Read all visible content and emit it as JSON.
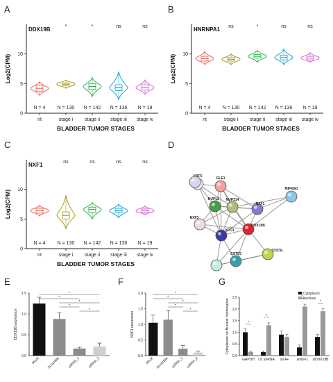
{
  "panel_letters": [
    "A",
    "B",
    "C",
    "D",
    "E",
    "F",
    "G"
  ],
  "colors": {
    "nt": "#f06b5e",
    "stage_i": "#a79b1d",
    "stage_ii": "#2bb24c",
    "stage_iii": "#1aa6d8",
    "stage_iv": "#d468d8",
    "bar_black": "#111111",
    "bar_gray": "#999999",
    "bar_light": "#cfcfcf"
  },
  "chart_data": [
    {
      "type": "violin",
      "panel": "A",
      "title": "DDX19B",
      "ylabel": "Log2(CPM)",
      "xlabel": "BLADDER TUMOR STAGES",
      "ylim": [
        0,
        15
      ],
      "yticks": [
        "0",
        "5",
        "10"
      ],
      "categories": [
        "nt",
        "stage i",
        "stage ii",
        "stage iii",
        "stage iv"
      ],
      "counts": [
        "N = 4",
        "N = 130",
        "N = 142",
        "N = 136",
        "N = 19"
      ],
      "significance": [
        "",
        "*",
        "*",
        "ns",
        "ns"
      ],
      "medians": [
        4.2,
        4.9,
        4.5,
        4.3,
        4.3
      ],
      "q1": [
        3.7,
        4.7,
        4.0,
        3.8,
        3.9
      ],
      "q3": [
        4.7,
        5.1,
        5.0,
        4.8,
        4.8
      ],
      "min": [
        3.0,
        4.2,
        2.8,
        2.3,
        3.2
      ],
      "max": [
        5.3,
        5.6,
        6.0,
        7.0,
        5.6
      ]
    },
    {
      "type": "violin",
      "panel": "B",
      "title": "HNRNPA1",
      "ylabel": "Log2(CPM)",
      "xlabel": "BLADDER TUMOR STAGES",
      "ylim": [
        0,
        15
      ],
      "yticks": [
        "0",
        "5",
        "10"
      ],
      "categories": [
        "nt",
        "stage i",
        "stage ii",
        "stage iii",
        "stage iv"
      ],
      "counts": [
        "N = 4",
        "N = 130",
        "N = 142",
        "N = 136",
        "N = 19"
      ],
      "significance": [
        "",
        "ns",
        "*",
        "ns",
        "ns"
      ],
      "medians": [
        9.2,
        9.1,
        9.6,
        9.4,
        9.3
      ],
      "q1": [
        8.8,
        8.8,
        9.3,
        9.0,
        9.0
      ],
      "q3": [
        9.6,
        9.4,
        9.9,
        9.8,
        9.6
      ],
      "min": [
        8.2,
        8.2,
        8.6,
        8.2,
        8.6
      ],
      "max": [
        10.4,
        10.0,
        10.6,
        10.8,
        10.2
      ]
    },
    {
      "type": "violin",
      "panel": "C",
      "title": "NXF1",
      "ylabel": "Log2(CPM)",
      "xlabel": "BLADDER TUMOR STAGES",
      "ylim": [
        0,
        15
      ],
      "yticks": [
        "0",
        "5",
        "10"
      ],
      "categories": [
        "nt",
        "stage i",
        "stage ii",
        "stage iii",
        "stage iv"
      ],
      "counts": [
        "N = 4",
        "N = 130",
        "N = 142",
        "N = 136",
        "N = 19"
      ],
      "significance": [
        "",
        "ns",
        "ns",
        "ns",
        "ns"
      ],
      "medians": [
        6.4,
        5.6,
        6.6,
        6.4,
        6.4
      ],
      "q1": [
        6.0,
        5.0,
        6.1,
        6.1,
        6.1
      ],
      "q3": [
        6.8,
        6.2,
        7.0,
        6.8,
        6.7
      ],
      "min": [
        5.5,
        3.3,
        5.0,
        5.2,
        5.7
      ],
      "max": [
        7.3,
        9.0,
        7.8,
        7.5,
        7.2
      ]
    },
    {
      "type": "bar",
      "panel": "E",
      "ylabel": "DDX19B expression",
      "ylim": [
        0,
        1.5
      ],
      "yticks": [
        "0.0",
        "0.5",
        "1.0",
        "1.5"
      ],
      "categories": [
        "Mock",
        "Scramble",
        "siRNA_1",
        "siRNA_2"
      ],
      "values": [
        1.25,
        0.88,
        0.17,
        0.22
      ],
      "errors": [
        0.15,
        0.15,
        0.03,
        0.08
      ],
      "bar_colors": [
        "#111111",
        "#8c8c8c",
        "#8c8c8c",
        "#cfcfcf"
      ],
      "significance_label": "*"
    },
    {
      "type": "bar",
      "panel": "F",
      "ylabel": "NXF1 expression",
      "ylim": [
        0,
        2.0
      ],
      "yticks": [
        "0.0",
        "0.5",
        "1.0",
        "1.5",
        "2.0"
      ],
      "categories": [
        "Mock",
        "Scramble",
        "siRNA_1",
        "siRNA_2"
      ],
      "values": [
        1.05,
        1.15,
        0.22,
        0.1
      ],
      "errors": [
        0.25,
        0.3,
        0.1,
        0.05
      ],
      "bar_colors": [
        "#111111",
        "#8c8c8c",
        "#8c8c8c",
        "#cfcfcf"
      ],
      "significance_label": "*"
    },
    {
      "type": "bar",
      "panel": "G",
      "ylabel": "Cytoplasmic vs Nuclear fractionation",
      "ylim": [
        0,
        2.5
      ],
      "yticks": [
        "0.0",
        "0.5",
        "1.0",
        "1.5",
        "2.0",
        "2.5"
      ],
      "categories": [
        "GAPDH",
        "U1 snRNA",
        "oli.A+",
        "siNXF1",
        "siDDX19B"
      ],
      "series": [
        {
          "name": "Cytoplasm",
          "values": [
            1.0,
            0.15,
            0.9,
            0.35,
            0.8
          ]
        },
        {
          "name": "Nucleus",
          "values": [
            0.15,
            1.3,
            0.8,
            2.1,
            1.9
          ]
        }
      ],
      "errors": [
        [
          0.15,
          0.05,
          0.15,
          0.1,
          0.1
        ],
        [
          0.05,
          0.1,
          0.1,
          0.1,
          0.1
        ]
      ],
      "significance_label": "*"
    }
  ],
  "network": {
    "nodes": [
      {
        "id": "NXF5",
        "color": "#e7e7f8"
      },
      {
        "id": "GLE1",
        "color": "#f2a39a"
      },
      {
        "id": "NUPL2",
        "color": "#47a03f"
      },
      {
        "id": "NUP214",
        "color": "#b9b97a"
      },
      {
        "id": "NXF1",
        "color": "#8d74d9"
      },
      {
        "id": "MIF4GD",
        "color": "#8bc6e8"
      },
      {
        "id": "NXF3",
        "color": "#f0dcdc"
      },
      {
        "id": "XPO1",
        "color": "#3a3aa8"
      },
      {
        "id": "DDX19B",
        "color": "#e0242a"
      },
      {
        "id": "CSTF2",
        "color": "#36a0b0"
      },
      {
        "id": "CDC5L",
        "color": "#b8d84a"
      },
      {
        "id": "",
        "color": "#c0eee4"
      },
      {
        "id": "",
        "color": "#d6d6f0"
      }
    ]
  }
}
